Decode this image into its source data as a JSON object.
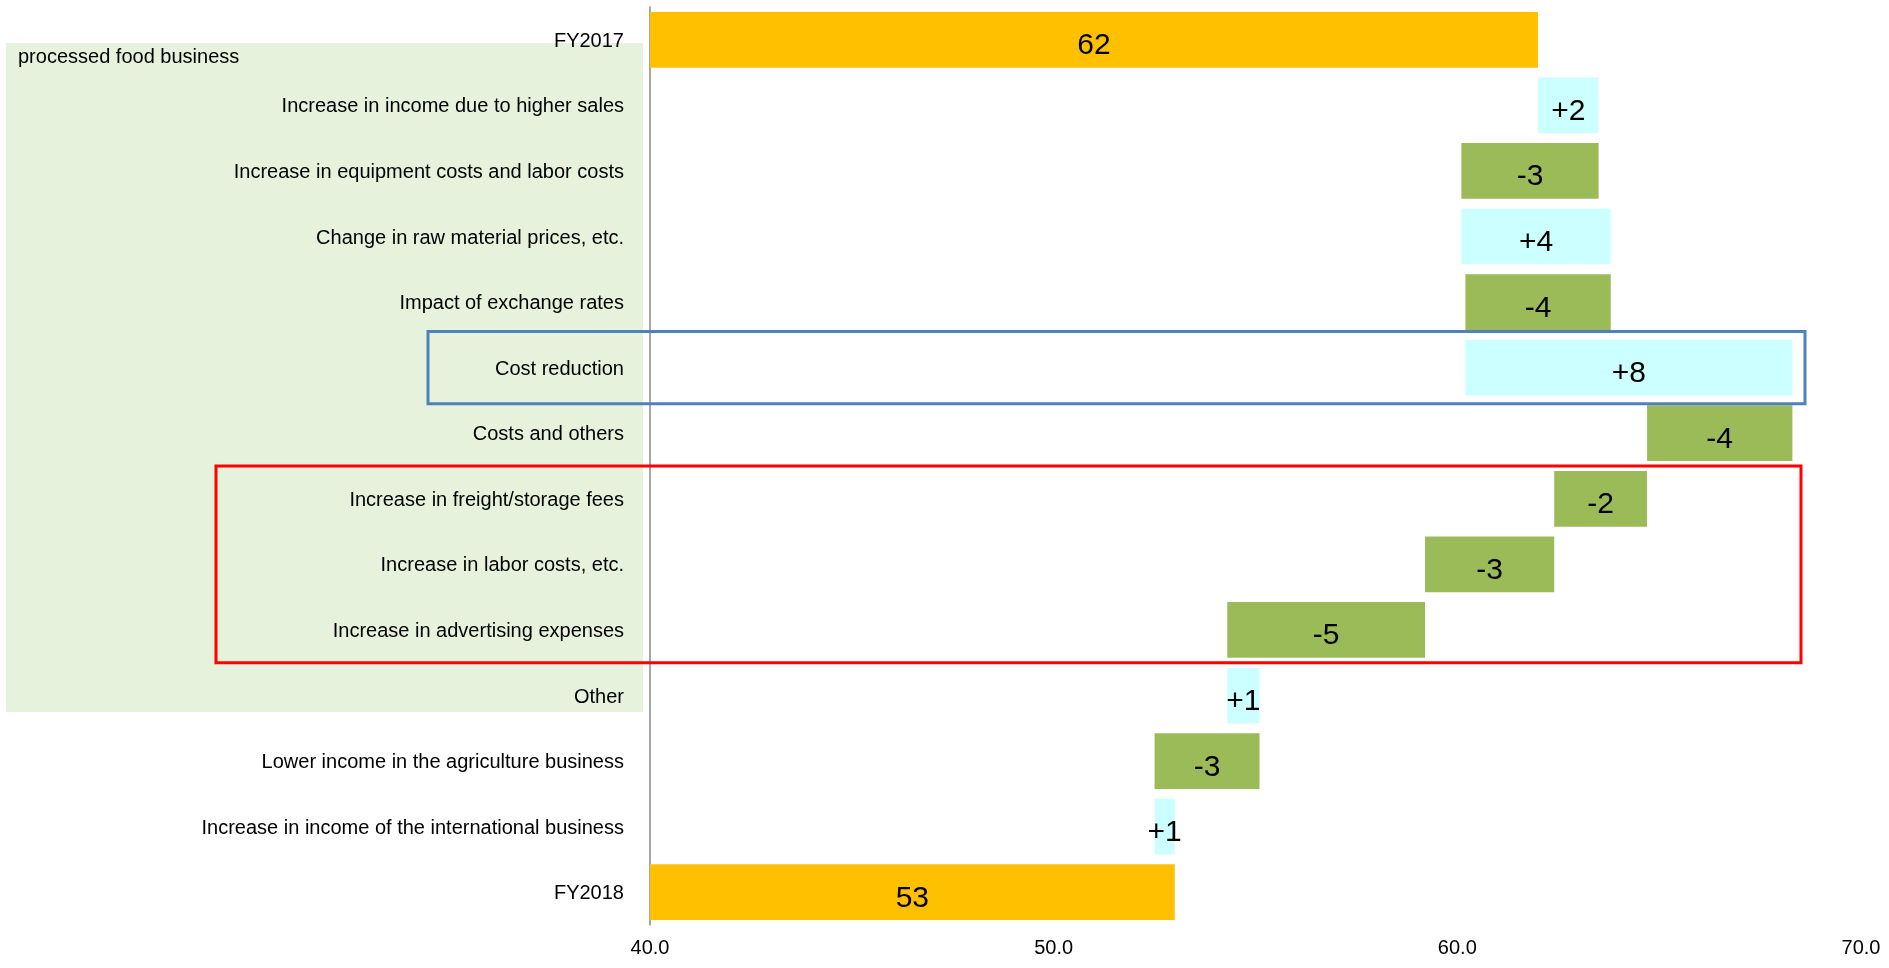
{
  "chart_data": {
    "type": "bar",
    "orientation": "horizontal",
    "categories": [
      "FY2017",
      "Increase in income due to higher sales",
      "Increase in equipment costs and labor costs",
      "Change in raw material prices, etc.",
      "Impact of exchange rates",
      "Cost reduction",
      "Costs and others",
      "Increase in freight/storage fees",
      "Increase in labor costs, etc.",
      "Increase in advertising expenses",
      "Other",
      "Lower income in the agriculture business",
      "Increase in income of the international business",
      "FY2018"
    ],
    "values": [
      62,
      1.5,
      -3.4,
      3.7,
      -3.6,
      8.1,
      -3.6,
      -2.3,
      -3.2,
      -4.9,
      0.8,
      -2.6,
      0.5,
      53
    ],
    "base": [
      null,
      62,
      63.5,
      60.1,
      63.8,
      60.2,
      68.3,
      64.7,
      62.4,
      59.2,
      54.3,
      55.1,
      52.5,
      null
    ],
    "colors": [
      "#ffc000",
      "#ccffff",
      "#9bbb59",
      "#ccffff",
      "#9bbb59",
      "#ccffff",
      "#9bbb59",
      "#9bbb59",
      "#9bbb59",
      "#9bbb59",
      "#ccffff",
      "#9bbb59",
      "#ccffff",
      "#ffc000"
    ],
    "value_labels": [
      "62",
      "+2",
      "-3",
      "+4",
      "-4",
      "+8",
      "-4",
      "-2",
      "-3",
      "-5",
      "+1",
      "-3",
      "+1",
      "53"
    ],
    "xlim": [
      40,
      70
    ],
    "xticks": [
      {
        "value": 40,
        "label": "40.0"
      },
      {
        "value": 50,
        "label": "50.0"
      },
      {
        "value": 60,
        "label": "60.0"
      },
      {
        "value": 70,
        "label": "70.0"
      }
    ],
    "grid": false,
    "annotations": [
      "processed food business"
    ]
  }
}
